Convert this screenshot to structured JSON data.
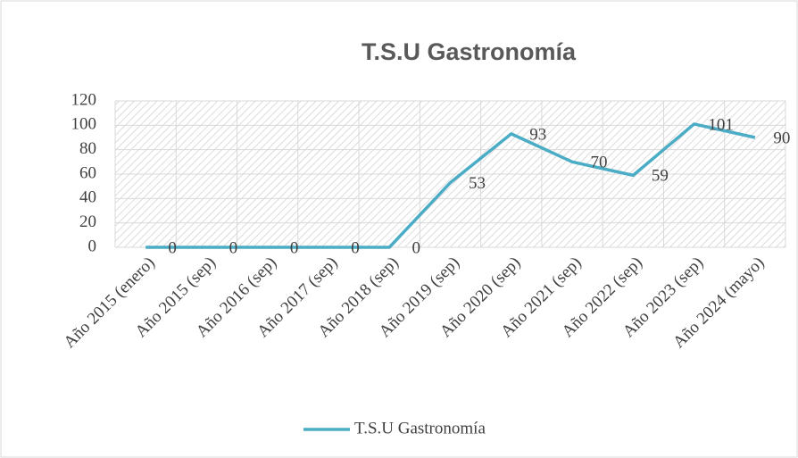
{
  "chart_data": {
    "type": "line",
    "title": "T.S.U Gastronomía",
    "categories": [
      "Año 2015 (enero)",
      "Año 2015 (sep)",
      "Año 2016 (sep)",
      "Año 2017 (sep)",
      "Año 2018 (sep)",
      "Año 2019 (sep)",
      "Año 2020 (sep)",
      "Año 2021 (sep)",
      "Año 2022 (sep)",
      "Año 2023 (sep)",
      "Año 2024 (mayo)"
    ],
    "series": [
      {
        "name": "T.S.U Gastronomía",
        "color": "#4bacc6",
        "values": [
          0,
          0,
          0,
          0,
          0,
          53,
          93,
          70,
          59,
          101,
          90
        ]
      }
    ],
    "ylim": [
      0,
      120
    ],
    "yticks": [
      0,
      20,
      40,
      60,
      80,
      100,
      120
    ],
    "grid": true,
    "legend": "bottom"
  }
}
